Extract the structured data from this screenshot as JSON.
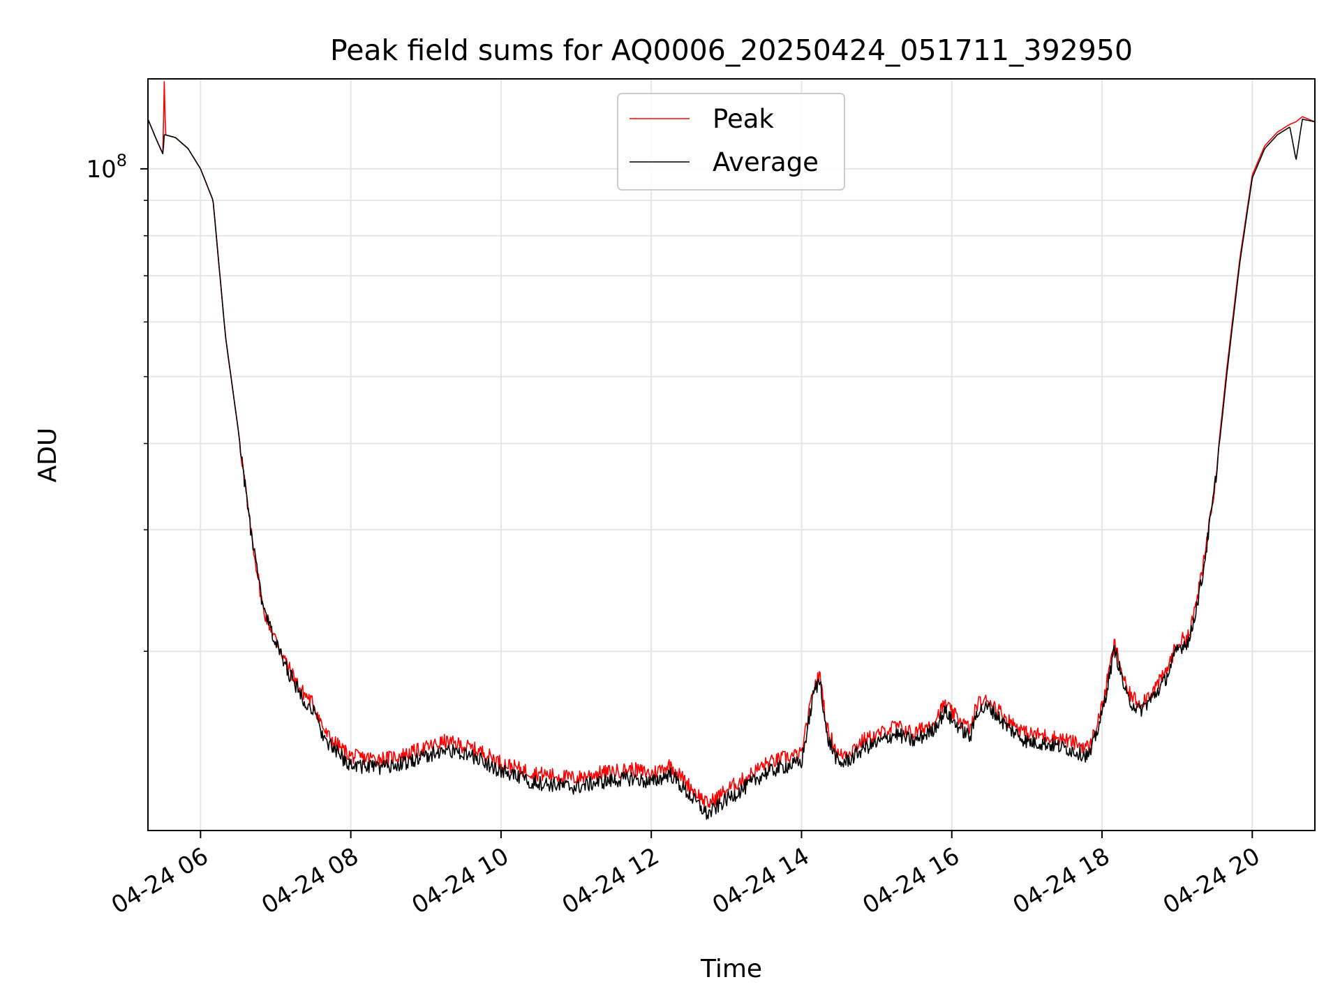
{
  "chart_data": {
    "type": "line",
    "title": "Peak field sums for AQ0006_20250424_051711_392950",
    "xlabel": "Time",
    "ylabel": "ADU",
    "yscale": "log",
    "grid": true,
    "legend_position": "upper-center",
    "xlim": [
      "2025-04-24 05:18",
      "2025-04-24 20:50"
    ],
    "ylim": [
      11000000,
      135000000
    ],
    "x_ticks": [
      "04-24 06",
      "04-24 08",
      "04-24 10",
      "04-24 12",
      "04-24 14",
      "04-24 16",
      "04-24 18",
      "04-24 20"
    ],
    "y_tick_major": {
      "base": "10",
      "exponent": "8"
    },
    "series": [
      {
        "name": "Peak",
        "color": "#ff0000",
        "x": [
          "05:18",
          "05:25",
          "05:30",
          "05:31",
          "05:32",
          "05:40",
          "05:50",
          "06:00",
          "06:10",
          "06:20",
          "06:30",
          "06:40",
          "06:50",
          "07:00",
          "07:10",
          "07:20",
          "07:30",
          "07:40",
          "07:50",
          "08:00",
          "08:15",
          "08:30",
          "08:45",
          "09:00",
          "09:15",
          "09:30",
          "09:45",
          "10:00",
          "10:15",
          "10:30",
          "10:45",
          "11:00",
          "11:15",
          "11:30",
          "11:45",
          "12:00",
          "12:15",
          "12:30",
          "12:45",
          "12:50",
          "13:00",
          "13:15",
          "13:30",
          "13:45",
          "14:00",
          "14:10",
          "14:15",
          "14:20",
          "14:30",
          "14:40",
          "14:50",
          "15:00",
          "15:15",
          "15:30",
          "15:45",
          "15:55",
          "16:00",
          "16:15",
          "16:20",
          "16:30",
          "16:45",
          "17:00",
          "17:15",
          "17:30",
          "17:45",
          "17:50",
          "18:00",
          "18:10",
          "18:20",
          "18:30",
          "18:40",
          "18:50",
          "19:00",
          "19:10",
          "19:20",
          "19:30",
          "19:40",
          "19:50",
          "20:00",
          "20:10",
          "20:20",
          "20:30",
          "20:35",
          "20:40",
          "20:50"
        ],
        "values": [
          118,
          110,
          105,
          135,
          112,
          111,
          107,
          100,
          90,
          57,
          42,
          30,
          23,
          20.8,
          19.0,
          17.6,
          16.8,
          15.2,
          14.6,
          14.1,
          14.0,
          14.0,
          14.2,
          14.5,
          14.8,
          14.6,
          14.3,
          13.8,
          13.5,
          13.3,
          13.2,
          13.1,
          13.3,
          13.4,
          13.5,
          13.3,
          13.7,
          12.8,
          12.0,
          12.2,
          12.6,
          13.1,
          13.7,
          14.0,
          14.2,
          17.8,
          18.5,
          15.5,
          14.1,
          14.4,
          14.9,
          15.1,
          15.6,
          15.2,
          15.8,
          16.8,
          16.3,
          15.4,
          16.8,
          17.0,
          15.9,
          15.2,
          15.1,
          14.9,
          14.6,
          14.5,
          16.6,
          20.5,
          17.5,
          16.8,
          17.5,
          18.5,
          20.5,
          21.2,
          26,
          35,
          52,
          74,
          98,
          108,
          113,
          116,
          117,
          119,
          117
        ]
      },
      {
        "name": "Average",
        "color": "#000000",
        "x": [
          "05:18",
          "05:25",
          "05:30",
          "05:31",
          "05:32",
          "05:40",
          "05:50",
          "06:00",
          "06:10",
          "06:20",
          "06:30",
          "06:40",
          "06:50",
          "07:00",
          "07:10",
          "07:20",
          "07:30",
          "07:40",
          "07:50",
          "08:00",
          "08:15",
          "08:30",
          "08:45",
          "09:00",
          "09:15",
          "09:30",
          "09:45",
          "10:00",
          "10:15",
          "10:30",
          "10:45",
          "11:00",
          "11:15",
          "11:30",
          "11:45",
          "12:00",
          "12:15",
          "12:30",
          "12:45",
          "12:50",
          "13:00",
          "13:15",
          "13:30",
          "13:45",
          "14:00",
          "14:10",
          "14:15",
          "14:20",
          "14:30",
          "14:40",
          "14:50",
          "15:00",
          "15:15",
          "15:30",
          "15:45",
          "15:55",
          "16:00",
          "16:15",
          "16:20",
          "16:30",
          "16:45",
          "17:00",
          "17:15",
          "17:30",
          "17:45",
          "17:50",
          "18:00",
          "18:10",
          "18:20",
          "18:30",
          "18:40",
          "18:50",
          "19:00",
          "19:10",
          "19:20",
          "19:30",
          "19:40",
          "19:50",
          "20:00",
          "20:10",
          "20:20",
          "20:30",
          "20:35",
          "20:40",
          "20:50"
        ],
        "values": [
          118,
          110,
          105,
          112,
          112,
          111,
          107,
          100,
          90,
          57,
          42,
          30,
          23,
          20.6,
          18.7,
          17.3,
          16.4,
          14.8,
          14.2,
          13.7,
          13.6,
          13.6,
          13.8,
          14.1,
          14.4,
          14.2,
          13.9,
          13.4,
          13.1,
          12.9,
          12.8,
          12.7,
          12.9,
          13.0,
          13.1,
          12.9,
          13.3,
          12.4,
          11.6,
          11.8,
          12.2,
          12.7,
          13.3,
          13.6,
          13.8,
          17.5,
          18.2,
          15.1,
          13.7,
          14.0,
          14.5,
          14.7,
          15.2,
          14.8,
          15.4,
          16.4,
          15.9,
          15.0,
          16.4,
          16.6,
          15.5,
          14.8,
          14.7,
          14.5,
          14.2,
          14.1,
          16.2,
          20.2,
          17.1,
          16.4,
          17.1,
          18.1,
          20.1,
          20.8,
          25.5,
          34.5,
          51,
          73,
          97,
          107,
          112,
          115,
          103,
          118,
          117
        ]
      }
    ]
  }
}
